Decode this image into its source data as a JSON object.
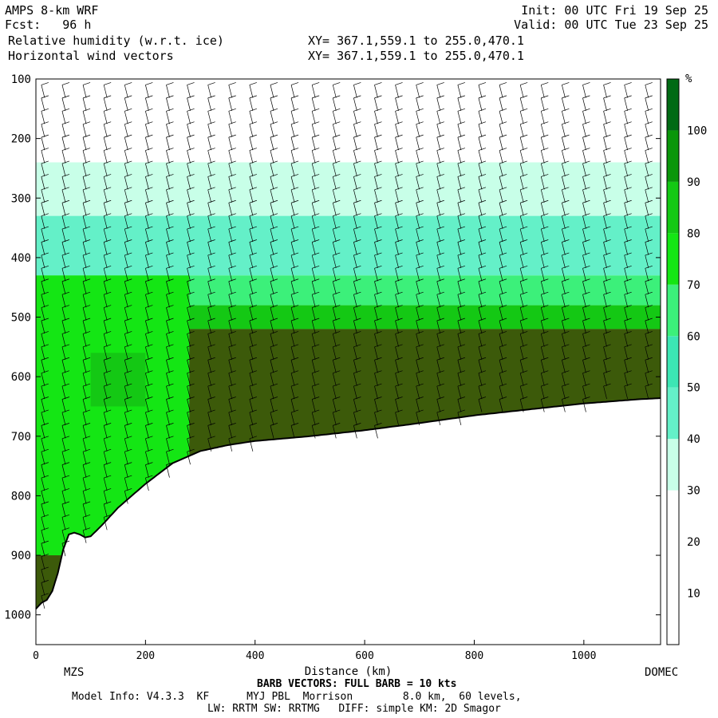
{
  "header": {
    "model": "AMPS 8-km WRF",
    "fcst": "Fcst:   96 h",
    "field1": "Relative humidity (w.r.t. ice)",
    "field2": "Horizontal wind vectors",
    "init": "Init: 00 UTC Fri 19 Sep 25",
    "valid": "Valid: 00 UTC Tue 23 Sep 25",
    "xy1": "XY= 367.1,559.1 to 255.0,470.1",
    "xy2": "XY= 367.1,559.1 to 255.0,470.1"
  },
  "footer": {
    "barb": "BARB VECTORS: FULL BARB = 10 kts",
    "model_info": "Model Info: V4.3.3  KF      MYJ PBL  Morrison        8.0 km,  60 levels,",
    "physics": "LW: RRTM SW: RRTMG   DIFF: simple KM: 2D Smagor",
    "left_station": "MZS",
    "right_station": "DOMEC"
  },
  "colors": {
    "rh_bins": [
      "#ffffff",
      "#ffffff",
      "#ffffff",
      "#c8ffe8",
      "#64f0c8",
      "#3ce6b4",
      "#3cf07a",
      "#14e614",
      "#14c814",
      "#0a960a",
      "#006a14",
      "#3c5a0a"
    ],
    "terrain": "#ffffff"
  },
  "chart_data": {
    "type": "heatmap",
    "xlabel": "Distance (km)",
    "ylabel": "",
    "xlim": [
      0,
      1140
    ],
    "ylim": [
      1050,
      100
    ],
    "x_ticks": [
      0,
      200,
      400,
      600,
      800,
      1000
    ],
    "y_ticks": [
      100,
      200,
      300,
      400,
      500,
      600,
      700,
      800,
      900,
      1000
    ],
    "colorbar": {
      "unit": "%",
      "ticks": [
        10,
        20,
        30,
        40,
        50,
        60,
        70,
        80,
        90,
        100
      ],
      "bin_edges": [
        0,
        10,
        20,
        30,
        40,
        50,
        60,
        70,
        80,
        90,
        100,
        110
      ]
    },
    "terrain_surface_hPa": {
      "x": [
        0,
        10,
        20,
        30,
        40,
        50,
        60,
        70,
        80,
        90,
        100,
        120,
        150,
        200,
        250,
        300,
        350,
        400,
        500,
        600,
        700,
        800,
        900,
        1000,
        1100,
        1140
      ],
      "p": [
        990,
        980,
        975,
        960,
        930,
        890,
        865,
        862,
        865,
        870,
        868,
        850,
        820,
        780,
        745,
        725,
        715,
        708,
        700,
        690,
        678,
        665,
        655,
        645,
        638,
        636
      ]
    },
    "rh_layers": [
      {
        "name": "near_saturation_mid",
        "p_top": 520,
        "p_bottom_at_surface": true,
        "rh": 100
      },
      {
        "name": "moist_band",
        "p_top": 450,
        "rh": 85
      },
      {
        "name": "upper_moist",
        "p_top": 330,
        "rh": 45
      },
      {
        "name": "dry_upper",
        "p_top": 100,
        "rh": 5
      }
    ]
  }
}
